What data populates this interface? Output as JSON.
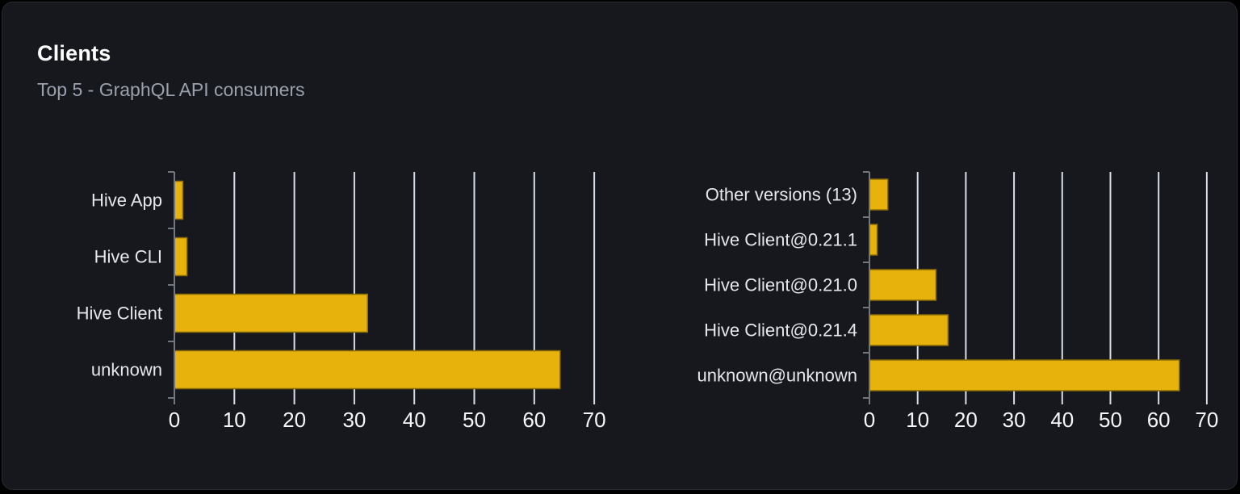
{
  "panel": {
    "title": "Clients",
    "subtitle": "Top 5 - GraphQL API consumers"
  },
  "colors": {
    "page_bg": "#000000",
    "card_bg": "#16181d",
    "card_border": "#262a31",
    "title_color": "#ffffff",
    "subtitle_color": "#9aa1ad",
    "bar_fill": "#e8b20c",
    "bar_stroke": "#8a6d08",
    "grid_line": "#d8dee9",
    "axis_line": "#71767f",
    "category_label": "#e5e7eb",
    "tick_label": "#f5f6f8"
  },
  "chart_data": [
    {
      "id": "clients-by-name",
      "type": "bar",
      "orientation": "horizontal",
      "title": "",
      "xlabel": "",
      "ylabel": "",
      "categories": [
        "Hive App",
        "Hive CLI",
        "Hive Client",
        "unknown"
      ],
      "values": [
        1.4,
        2.1,
        32.2,
        64.3
      ],
      "xticks": [
        0,
        10,
        20,
        30,
        40,
        50,
        60,
        70
      ],
      "xlim": [
        0,
        71.6
      ],
      "grid": true,
      "legend": false
    },
    {
      "id": "clients-by-version",
      "type": "bar",
      "orientation": "horizontal",
      "title": "",
      "xlabel": "",
      "ylabel": "",
      "categories": [
        "Other versions (13)",
        "Hive Client@0.21.1",
        "Hive Client@0.21.0",
        "Hive Client@0.21.4",
        "unknown@unknown"
      ],
      "values": [
        3.8,
        1.6,
        13.8,
        16.3,
        64.3
      ],
      "xticks": [
        0,
        10,
        20,
        30,
        40,
        50,
        60,
        70
      ],
      "xlim": [
        0,
        72.2
      ],
      "grid": true,
      "legend": false
    }
  ]
}
